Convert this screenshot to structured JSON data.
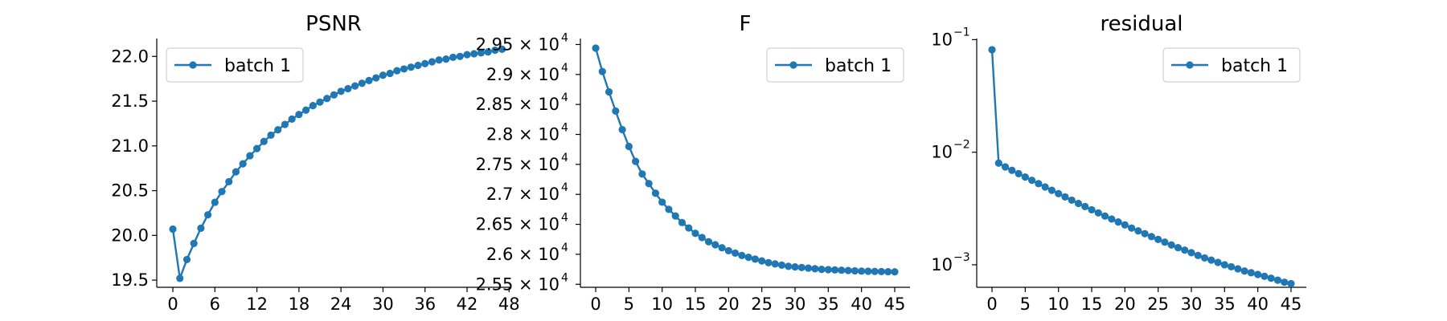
{
  "color": "#1f77b4",
  "chart_data": [
    {
      "type": "line",
      "title": "PSNR",
      "xlabel": "",
      "ylabel": "",
      "legend": "top-left",
      "grid": false,
      "xlim": [
        -2.3,
        48.2
      ],
      "ylim": [
        19.42,
        22.2
      ],
      "xticks": [
        "0",
        "6",
        "12",
        "18",
        "24",
        "30",
        "36",
        "42",
        "48"
      ],
      "yticks": [
        "19.5",
        "20.0",
        "20.5",
        "21.0",
        "21.5",
        "22.0"
      ],
      "series": [
        {
          "name": "batch 1",
          "x": [
            0,
            1,
            2,
            3,
            4,
            5,
            6,
            7,
            8,
            9,
            10,
            11,
            12,
            13,
            14,
            15,
            16,
            17,
            18,
            19,
            20,
            21,
            22,
            23,
            24,
            25,
            26,
            27,
            28,
            29,
            30,
            31,
            32,
            33,
            34,
            35,
            36,
            37,
            38,
            39,
            40,
            41,
            42,
            43,
            44,
            45,
            46,
            47
          ],
          "y": [
            20.07,
            19.52,
            19.73,
            19.91,
            20.08,
            20.23,
            20.37,
            20.49,
            20.6,
            20.71,
            20.8,
            20.89,
            20.97,
            21.05,
            21.12,
            21.18,
            21.24,
            21.3,
            21.35,
            21.4,
            21.45,
            21.49,
            21.53,
            21.57,
            21.61,
            21.64,
            21.67,
            21.7,
            21.73,
            21.76,
            21.79,
            21.81,
            21.84,
            21.86,
            21.88,
            21.9,
            21.92,
            21.94,
            21.96,
            21.97,
            21.99,
            22.0,
            22.02,
            22.03,
            22.04,
            22.05,
            22.07,
            22.08
          ]
        }
      ]
    },
    {
      "type": "line",
      "title": "F",
      "xlabel": "",
      "ylabel": "",
      "legend": "top-right",
      "grid": false,
      "xlim": [
        -2.3,
        47.3
      ],
      "ylim": [
        25450,
        29600
      ],
      "xticks": [
        "0",
        "5",
        "10",
        "15",
        "20",
        "25",
        "30",
        "35",
        "40",
        "45"
      ],
      "yticks": [
        {
          "mant": "2.55",
          "exp": "4"
        },
        {
          "mant": "2.6",
          "exp": "4"
        },
        {
          "mant": "2.65",
          "exp": "4"
        },
        {
          "mant": "2.7",
          "exp": "4"
        },
        {
          "mant": "2.75",
          "exp": "4"
        },
        {
          "mant": "2.8",
          "exp": "4"
        },
        {
          "mant": "2.85",
          "exp": "4"
        },
        {
          "mant": "2.9",
          "exp": "4"
        },
        {
          "mant": "2.95",
          "exp": "4"
        }
      ],
      "ytick_values": [
        25500,
        26000,
        26500,
        27000,
        27500,
        28000,
        28500,
        29000,
        29500
      ],
      "tick_multiplier": "× 10",
      "series": [
        {
          "name": "batch 1",
          "x": [
            0,
            1,
            2,
            3,
            4,
            5,
            6,
            7,
            8,
            9,
            10,
            11,
            12,
            13,
            14,
            15,
            16,
            17,
            18,
            19,
            20,
            21,
            22,
            23,
            24,
            25,
            26,
            27,
            28,
            29,
            30,
            31,
            32,
            33,
            34,
            35,
            36,
            37,
            38,
            39,
            40,
            41,
            42,
            43,
            44,
            45
          ],
          "y": [
            29440,
            29050,
            28710,
            28390,
            28080,
            27800,
            27550,
            27340,
            27180,
            27020,
            26870,
            26750,
            26640,
            26530,
            26440,
            26350,
            26280,
            26210,
            26160,
            26110,
            26060,
            26020,
            25980,
            25950,
            25920,
            25890,
            25860,
            25840,
            25820,
            25800,
            25790,
            25780,
            25770,
            25760,
            25750,
            25745,
            25740,
            25735,
            25730,
            25725,
            25720,
            25718,
            25715,
            25712,
            25710,
            25708
          ]
        }
      ]
    },
    {
      "type": "line",
      "title": "residual",
      "xlabel": "",
      "ylabel": "",
      "legend": "top-right",
      "grid": false,
      "yscale": "log",
      "xlim": [
        -2.3,
        47.3
      ],
      "ylim_log10": [
        -3.2,
        -0.99
      ],
      "xticks": [
        "0",
        "5",
        "10",
        "15",
        "20",
        "25",
        "30",
        "35",
        "40",
        "45"
      ],
      "yticks": [
        {
          "mant": "10",
          "exp": "−1"
        },
        {
          "mant": "10",
          "exp": "−2"
        },
        {
          "mant": "10",
          "exp": "−3"
        }
      ],
      "ytick_values": [
        0.1,
        0.01,
        0.001
      ],
      "series": [
        {
          "name": "batch 1",
          "x": [
            0,
            1,
            2,
            3,
            4,
            5,
            6,
            7,
            8,
            9,
            10,
            11,
            12,
            13,
            14,
            15,
            16,
            17,
            18,
            19,
            20,
            21,
            22,
            23,
            24,
            25,
            26,
            27,
            28,
            29,
            30,
            31,
            32,
            33,
            34,
            35,
            36,
            37,
            38,
            39,
            40,
            41,
            42,
            43,
            44,
            45
          ],
          "y": [
            0.0813,
            0.008,
            0.0074,
            0.0069,
            0.00645,
            0.00602,
            0.00563,
            0.00526,
            0.00491,
            0.00459,
            0.00429,
            0.00401,
            0.00375,
            0.00351,
            0.00329,
            0.00308,
            0.00289,
            0.00271,
            0.00255,
            0.0024,
            0.00226,
            0.00212,
            0.002,
            0.00189,
            0.00178,
            0.00168,
            0.00159,
            0.0015,
            0.00142,
            0.00135,
            0.00128,
            0.00121,
            0.00115,
            0.0011,
            0.00105,
            0.001,
            0.00096,
            0.00092,
            0.00088,
            0.00085,
            0.00082,
            0.00079,
            0.00076,
            0.00073,
            0.0007,
            0.00068
          ]
        }
      ]
    }
  ]
}
